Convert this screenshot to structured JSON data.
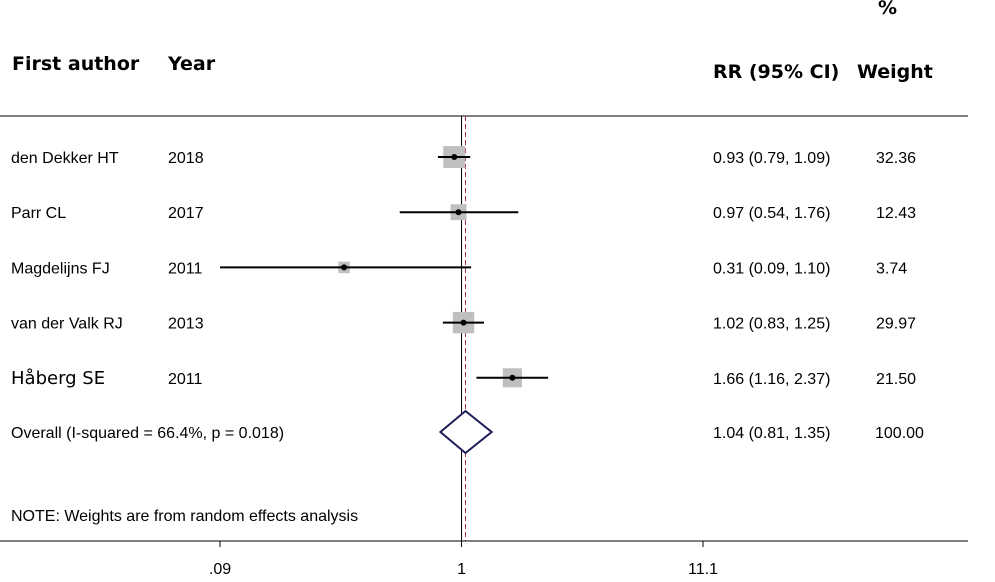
{
  "headers": {
    "author": "First author",
    "year": "Year",
    "estimate": "RR (95% CI)",
    "weight_pct": "%",
    "weight": "Weight"
  },
  "note": "NOTE: Weights are from random effects analysis",
  "chart_data": {
    "type": "forest",
    "scale": "log",
    "xlim": [
      0.09,
      11.1
    ],
    "xticks": [
      0.09,
      1,
      11.1
    ],
    "xtick_labels": [
      ".09",
      "1",
      "11.1"
    ],
    "null_line": 1,
    "overall_line": 1.04,
    "studies": [
      {
        "author": "den Dekker HT",
        "year": "2018",
        "rr": 0.93,
        "lo": 0.79,
        "hi": 1.09,
        "ci_text": "0.93 (0.79, 1.09)",
        "weight": "32.36",
        "weight_value": 32.36
      },
      {
        "author": "Parr CL",
        "year": "2017",
        "rr": 0.97,
        "lo": 0.54,
        "hi": 1.76,
        "ci_text": "0.97 (0.54, 1.76)",
        "weight": "12.43",
        "weight_value": 12.43
      },
      {
        "author": "Magdelijns FJ",
        "year": "2011",
        "rr": 0.31,
        "lo": 0.09,
        "hi": 1.1,
        "ci_text": "0.31 (0.09, 1.10)",
        "weight": "3.74",
        "weight_value": 3.74
      },
      {
        "author": "van der Valk RJ",
        "year": "2013",
        "rr": 1.02,
        "lo": 0.83,
        "hi": 1.25,
        "ci_text": "1.02 (0.83, 1.25)",
        "weight": "29.97",
        "weight_value": 29.97
      },
      {
        "author": "Håberg SE",
        "year": "2011",
        "rr": 1.66,
        "lo": 1.16,
        "hi": 2.37,
        "ci_text": "1.66 (1.16, 2.37)",
        "weight": "21.50",
        "weight_value": 21.5
      }
    ],
    "overall": {
      "label": "Overall  (I-squared = 66.4%, p = 0.018)",
      "rr": 1.04,
      "lo": 0.81,
      "hi": 1.35,
      "ci_text": "1.04 (0.81, 1.35)",
      "weight": "100.00"
    }
  }
}
